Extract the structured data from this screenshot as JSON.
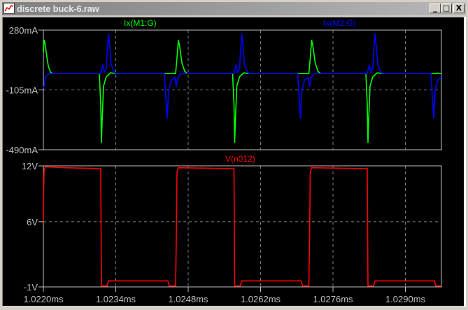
{
  "window": {
    "title": "discrete buck-6.raw",
    "buttons": {
      "minimize": "_",
      "maximize": "□",
      "close": "X"
    }
  },
  "colors": {
    "background": "#000000",
    "frame": "#c0c0c0",
    "grid": "#808080",
    "ix_m1_g": "#00ff00",
    "ix_m2_g": "#0000ff",
    "v_n012": "#ff0000"
  },
  "chart_data": [
    {
      "type": "line",
      "title": "",
      "xlabel": "",
      "ylabel": "",
      "xlim": [
        1.022,
        1.0297
      ],
      "ylim": [
        -490,
        280
      ],
      "y_ticks": [
        "280mA",
        "-105mA",
        "-490mA"
      ],
      "y_tick_values": [
        280,
        -105,
        -490
      ],
      "grid": true,
      "series": [
        {
          "name": "Ix(M1:G)",
          "color": "#00ff00",
          "points": [
            [
              1.022,
              140
            ],
            [
              1.022014,
              216
            ],
            [
              1.022027,
              205
            ],
            [
              1.022054,
              140
            ],
            [
              1.022095,
              50
            ],
            [
              1.022135,
              10
            ],
            [
              1.022176,
              0
            ],
            [
              1.023082,
              0
            ],
            [
              1.023109,
              -200
            ],
            [
              1.023123,
              -445
            ],
            [
              1.023136,
              -300
            ],
            [
              1.023163,
              -80
            ],
            [
              1.023217,
              -20
            ],
            [
              1.023299,
              5
            ],
            [
              1.023407,
              0
            ],
            [
              1.024557,
              0
            ],
            [
              1.024584,
              100
            ],
            [
              1.024611,
              216
            ],
            [
              1.024638,
              170
            ],
            [
              1.024678,
              70
            ],
            [
              1.024732,
              15
            ],
            [
              1.024786,
              0
            ],
            [
              1.025659,
              0
            ],
            [
              1.025686,
              -200
            ],
            [
              1.0257,
              -445
            ],
            [
              1.025713,
              -300
            ],
            [
              1.02574,
              -80
            ],
            [
              1.025794,
              -20
            ],
            [
              1.025876,
              5
            ],
            [
              1.025984,
              0
            ],
            [
              1.027134,
              0
            ],
            [
              1.027161,
              100
            ],
            [
              1.027188,
              216
            ],
            [
              1.027215,
              170
            ],
            [
              1.027255,
              70
            ],
            [
              1.027309,
              15
            ],
            [
              1.027363,
              0
            ],
            [
              1.028236,
              0
            ],
            [
              1.028263,
              -200
            ],
            [
              1.028277,
              -445
            ],
            [
              1.02829,
              -300
            ],
            [
              1.028317,
              -80
            ],
            [
              1.028371,
              -20
            ],
            [
              1.028453,
              5
            ],
            [
              1.028561,
              0
            ],
            [
              1.0296,
              0
            ],
            [
              1.02962,
              4
            ],
            [
              1.029697,
              0
            ]
          ]
        },
        {
          "name": "Ix(M2:G)",
          "color": "#0000ff",
          "points": [
            [
              1.022,
              -95
            ],
            [
              1.022014,
              -80
            ],
            [
              1.022041,
              -20
            ],
            [
              1.022081,
              -5
            ],
            [
              1.022135,
              0
            ],
            [
              1.023109,
              0
            ],
            [
              1.023136,
              40
            ],
            [
              1.02315,
              57
            ],
            [
              1.023177,
              10
            ],
            [
              1.023217,
              30
            ],
            [
              1.023231,
              120
            ],
            [
              1.023258,
              257
            ],
            [
              1.023285,
              170
            ],
            [
              1.023312,
              60
            ],
            [
              1.023366,
              10
            ],
            [
              1.023407,
              0
            ],
            [
              1.02434,
              0
            ],
            [
              1.024367,
              -150
            ],
            [
              1.024394,
              -290
            ],
            [
              1.024421,
              -110
            ],
            [
              1.024475,
              -40
            ],
            [
              1.024543,
              -25
            ],
            [
              1.02457,
              -85
            ],
            [
              1.024597,
              -30
            ],
            [
              1.024651,
              0
            ],
            [
              1.025686,
              0
            ],
            [
              1.025713,
              40
            ],
            [
              1.025727,
              57
            ],
            [
              1.025754,
              10
            ],
            [
              1.025794,
              30
            ],
            [
              1.025808,
              120
            ],
            [
              1.025835,
              257
            ],
            [
              1.025862,
              170
            ],
            [
              1.025889,
              60
            ],
            [
              1.025943,
              10
            ],
            [
              1.025984,
              0
            ],
            [
              1.026917,
              0
            ],
            [
              1.026944,
              -150
            ],
            [
              1.026971,
              -290
            ],
            [
              1.026998,
              -110
            ],
            [
              1.027052,
              -40
            ],
            [
              1.02712,
              -25
            ],
            [
              1.027147,
              -85
            ],
            [
              1.027174,
              -30
            ],
            [
              1.027228,
              0
            ],
            [
              1.028263,
              0
            ],
            [
              1.02829,
              40
            ],
            [
              1.028304,
              57
            ],
            [
              1.028331,
              10
            ],
            [
              1.028371,
              30
            ],
            [
              1.028385,
              120
            ],
            [
              1.028412,
              257
            ],
            [
              1.028439,
              170
            ],
            [
              1.028466,
              60
            ],
            [
              1.02852,
              10
            ],
            [
              1.028561,
              0
            ],
            [
              1.029494,
              0
            ],
            [
              1.029521,
              -150
            ],
            [
              1.029548,
              -290
            ],
            [
              1.029575,
              -110
            ],
            [
              1.029629,
              -40
            ],
            [
              1.029697,
              -20
            ]
          ]
        }
      ]
    },
    {
      "type": "line",
      "title": "",
      "xlabel": "",
      "ylabel": "",
      "xlim": [
        1.022,
        1.0297
      ],
      "ylim": [
        -1,
        12
      ],
      "y_ticks": [
        "12V",
        "6V",
        "-1V"
      ],
      "y_tick_values": [
        12,
        6,
        -1
      ],
      "x_ticks": [
        "1.0220ms",
        "1.0234ms",
        "1.0248ms",
        "1.0262ms",
        "1.0276ms",
        "1.0290ms"
      ],
      "x_tick_values": [
        1.022,
        1.0234,
        1.0248,
        1.0262,
        1.0276,
        1.029
      ],
      "grid": true,
      "series": [
        {
          "name": "V(n012)",
          "color": "#ff0000",
          "points": [
            [
              1.022,
              6
            ],
            [
              1.022005,
              9.3
            ],
            [
              1.022014,
              11.5
            ],
            [
              1.022041,
              11.9
            ],
            [
              1.022419,
              11.8
            ],
            [
              1.023109,
              11.7
            ],
            [
              1.023123,
              -0.9
            ],
            [
              1.023231,
              -0.9
            ],
            [
              1.023258,
              -0.35
            ],
            [
              1.024408,
              -0.35
            ],
            [
              1.024435,
              -0.9
            ],
            [
              1.024557,
              -0.9
            ],
            [
              1.02457,
              4
            ],
            [
              1.024584,
              11.3
            ],
            [
              1.024611,
              11.8
            ],
            [
              1.025686,
              11.7
            ],
            [
              1.0257,
              -0.9
            ],
            [
              1.025808,
              -0.9
            ],
            [
              1.025835,
              -0.35
            ],
            [
              1.026985,
              -0.35
            ],
            [
              1.027012,
              -0.9
            ],
            [
              1.027134,
              -0.9
            ],
            [
              1.027147,
              4
            ],
            [
              1.027161,
              11.3
            ],
            [
              1.027188,
              11.8
            ],
            [
              1.028263,
              11.7
            ],
            [
              1.028277,
              -0.9
            ],
            [
              1.028385,
              -0.9
            ],
            [
              1.028412,
              -0.35
            ],
            [
              1.029562,
              -0.35
            ],
            [
              1.029589,
              -0.9
            ],
            [
              1.029697,
              -0.9
            ]
          ]
        }
      ]
    }
  ]
}
